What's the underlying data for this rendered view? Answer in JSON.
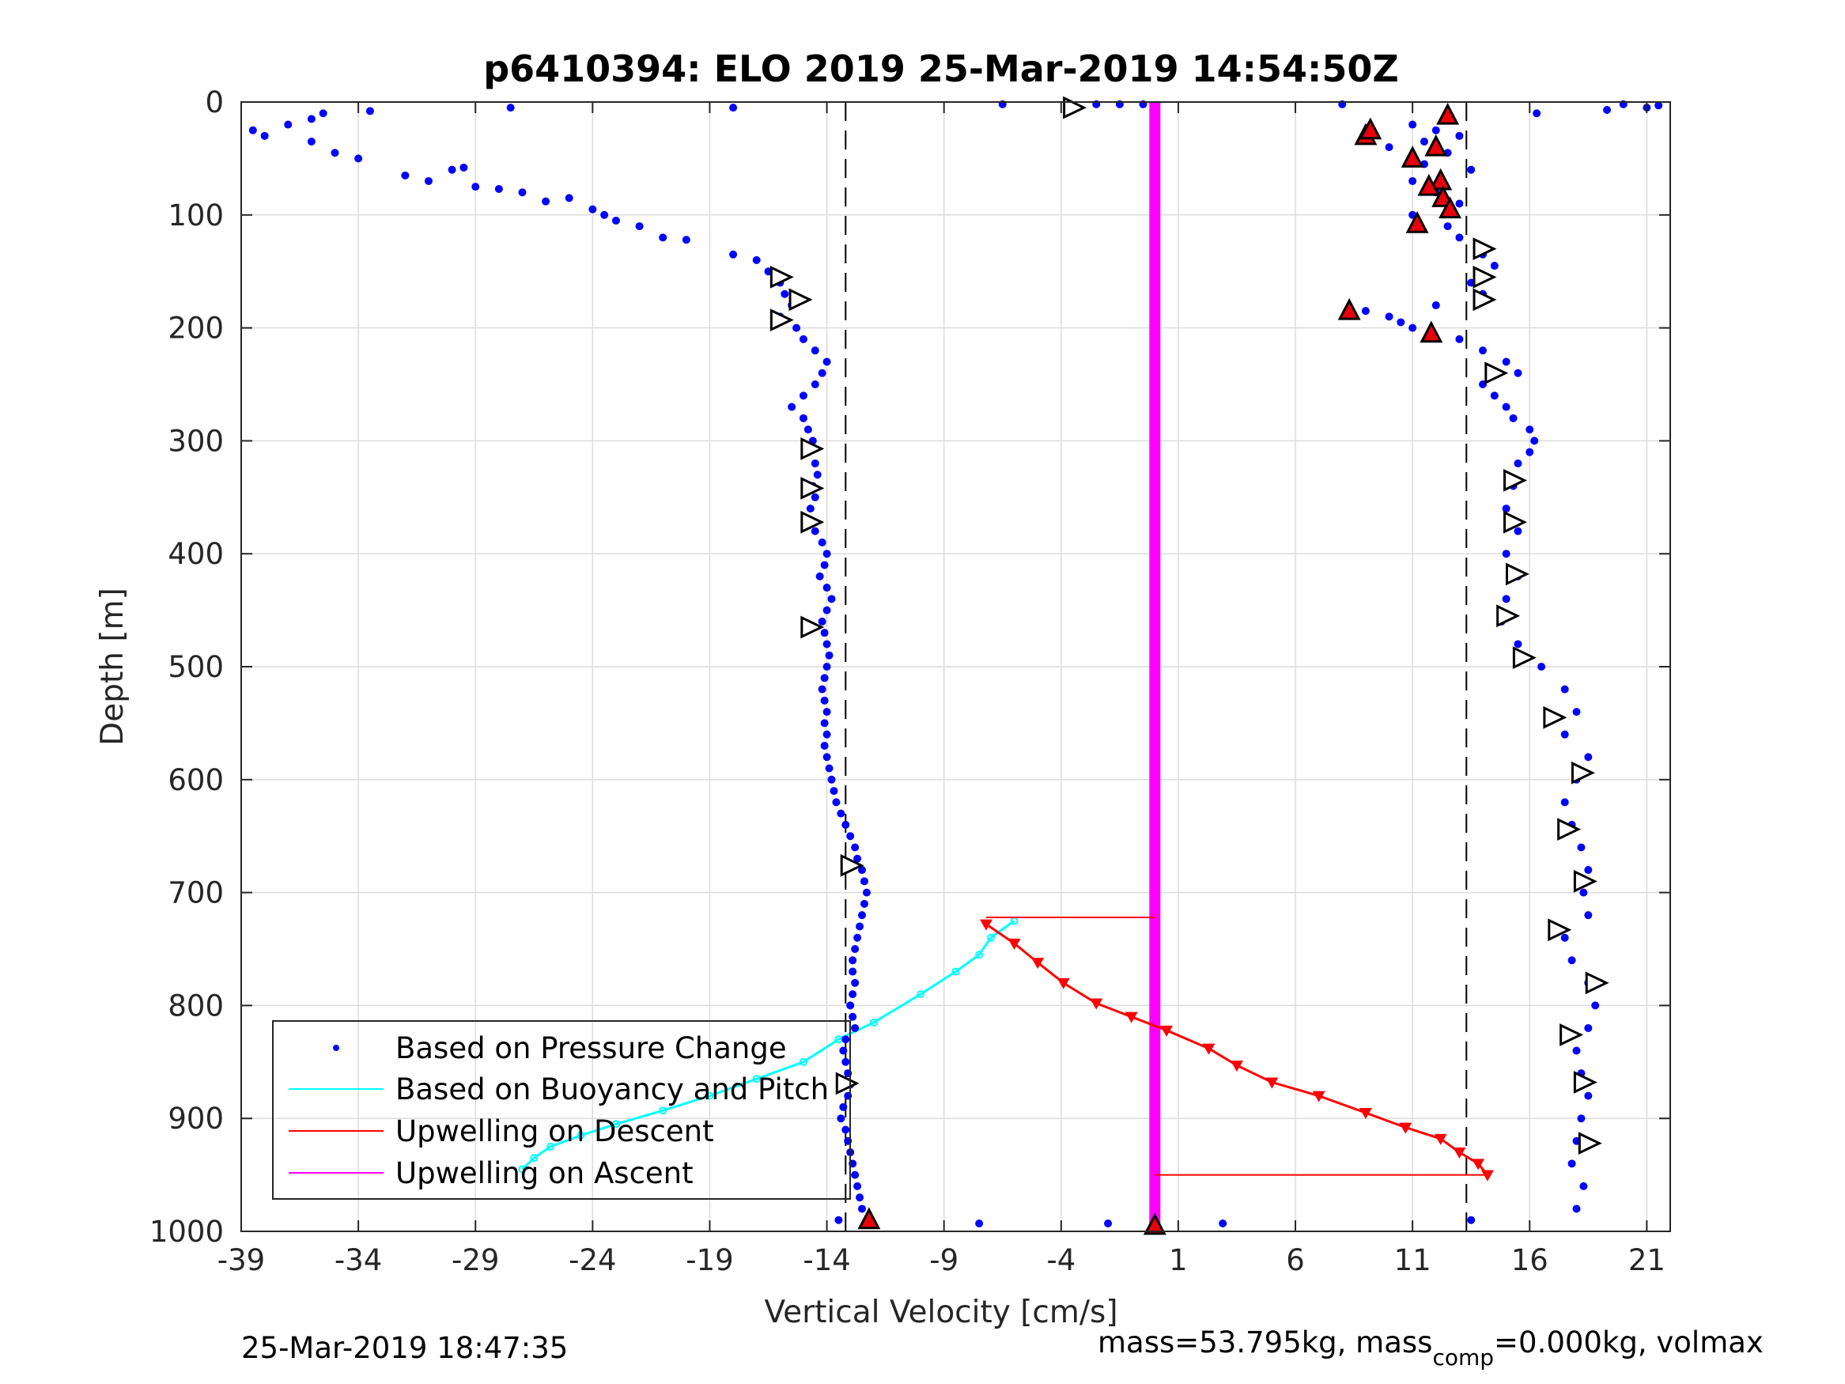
{
  "chart_data": {
    "type": "scatter",
    "title": "p6410394: ELO 2019 25-Mar-2019 14:54:50Z",
    "xlabel": "Vertical Velocity [cm/s]",
    "ylabel": "Depth [m]",
    "xlim": [
      -39,
      22
    ],
    "ylim": [
      0,
      1000
    ],
    "y_reversed": true,
    "grid": true,
    "xticks": [
      "-39",
      "-34",
      "-29",
      "-24",
      "-19",
      "-14",
      "-9",
      "-4",
      "1",
      "6",
      "11",
      "16",
      "21"
    ],
    "yticks": [
      "0",
      "100",
      "200",
      "300",
      "400",
      "500",
      "600",
      "700",
      "800",
      "900",
      "1000"
    ],
    "legend": {
      "position": "bottom-left",
      "entries": [
        {
          "label": "Based on Pressure Change",
          "color": "#0000ff",
          "marker": "dot"
        },
        {
          "label": "Based on Buoyancy and Pitch",
          "color": "#00ffff",
          "marker": "line"
        },
        {
          "label": "Upwelling on Descent",
          "color": "#ff0000",
          "marker": "line"
        },
        {
          "label": "Upwelling on Ascent",
          "color": "#ff00ff",
          "marker": "line"
        }
      ]
    },
    "reference_lines_x": [
      -13.2,
      13.3
    ],
    "series": [
      {
        "name": "Based on Pressure Change",
        "color": "#0000ff",
        "descent_points": [
          [
            -38.5,
            25
          ],
          [
            -38,
            30
          ],
          [
            -37,
            20
          ],
          [
            -36,
            15
          ],
          [
            -35.5,
            10
          ],
          [
            -36,
            35
          ],
          [
            -35,
            45
          ],
          [
            -33.5,
            8
          ],
          [
            -34,
            50
          ],
          [
            -32,
            65
          ],
          [
            -31,
            70
          ],
          [
            -30,
            60
          ],
          [
            -29.5,
            58
          ],
          [
            -29,
            75
          ],
          [
            -28,
            77
          ],
          [
            -27,
            80
          ],
          [
            -26,
            88
          ],
          [
            -25,
            85
          ],
          [
            -24,
            95
          ],
          [
            -23.5,
            100
          ],
          [
            -23,
            105
          ],
          [
            -22,
            110
          ],
          [
            -21,
            120
          ],
          [
            -20,
            122
          ],
          [
            -27.5,
            5
          ],
          [
            -18,
            5
          ],
          [
            -18,
            135
          ],
          [
            -17,
            140
          ],
          [
            -16.5,
            150
          ],
          [
            -16,
            160
          ],
          [
            -15.8,
            170
          ],
          [
            -15.5,
            180
          ],
          [
            -16,
            190
          ],
          [
            -15.3,
            200
          ],
          [
            -15,
            210
          ],
          [
            -14.5,
            220
          ],
          [
            -14,
            230
          ],
          [
            -14.2,
            240
          ],
          [
            -14.5,
            250
          ],
          [
            -15,
            260
          ],
          [
            -15.5,
            270
          ],
          [
            -15,
            280
          ],
          [
            -14.8,
            290
          ],
          [
            -14.6,
            300
          ],
          [
            -14.8,
            310
          ],
          [
            -14.5,
            320
          ],
          [
            -14.4,
            330
          ],
          [
            -14.6,
            340
          ],
          [
            -14.5,
            350
          ],
          [
            -14.7,
            360
          ],
          [
            -14.8,
            370
          ],
          [
            -14.5,
            380
          ],
          [
            -14.2,
            390
          ],
          [
            -14,
            400
          ],
          [
            -14.1,
            410
          ],
          [
            -14.3,
            420
          ],
          [
            -14,
            430
          ],
          [
            -13.8,
            440
          ],
          [
            -14,
            450
          ],
          [
            -14.2,
            460
          ],
          [
            -14.1,
            470
          ],
          [
            -14,
            480
          ],
          [
            -13.9,
            490
          ],
          [
            -14,
            500
          ],
          [
            -14.1,
            510
          ],
          [
            -14.2,
            520
          ],
          [
            -14.1,
            530
          ],
          [
            -14,
            540
          ],
          [
            -14.1,
            550
          ],
          [
            -14,
            560
          ],
          [
            -14.1,
            570
          ],
          [
            -14,
            580
          ],
          [
            -13.9,
            590
          ],
          [
            -13.8,
            600
          ],
          [
            -13.7,
            610
          ],
          [
            -13.6,
            620
          ],
          [
            -13.4,
            630
          ],
          [
            -13.2,
            640
          ],
          [
            -13,
            650
          ],
          [
            -12.8,
            660
          ],
          [
            -12.7,
            670
          ],
          [
            -12.5,
            680
          ],
          [
            -12.4,
            690
          ],
          [
            -12.3,
            700
          ],
          [
            -12.4,
            710
          ],
          [
            -12.5,
            720
          ],
          [
            -12.6,
            730
          ],
          [
            -12.7,
            740
          ],
          [
            -12.8,
            750
          ],
          [
            -12.9,
            760
          ],
          [
            -12.9,
            770
          ],
          [
            -12.8,
            780
          ],
          [
            -12.9,
            790
          ],
          [
            -13,
            800
          ],
          [
            -12.9,
            810
          ],
          [
            -12.8,
            820
          ],
          [
            -13.2,
            830
          ],
          [
            -13.3,
            840
          ],
          [
            -13.2,
            850
          ],
          [
            -13.1,
            860
          ],
          [
            -13,
            870
          ],
          [
            -13.1,
            880
          ],
          [
            -13.3,
            890
          ],
          [
            -13.4,
            900
          ],
          [
            -13.2,
            910
          ],
          [
            -13.1,
            920
          ],
          [
            -13,
            930
          ],
          [
            -12.9,
            940
          ],
          [
            -12.8,
            950
          ],
          [
            -12.7,
            960
          ],
          [
            -12.6,
            970
          ],
          [
            -12.5,
            980
          ],
          [
            -13.5,
            990
          ],
          [
            -7.5,
            993
          ],
          [
            -2,
            993
          ],
          [
            2.9,
            993
          ]
        ],
        "ascent_points": [
          [
            -6.5,
            2
          ],
          [
            -2.5,
            2
          ],
          [
            -1.5,
            2
          ],
          [
            -0.5,
            2
          ],
          [
            8,
            2
          ],
          [
            16.3,
            10
          ],
          [
            19.3,
            7
          ],
          [
            20,
            2
          ],
          [
            21,
            5
          ],
          [
            21.5,
            3
          ],
          [
            11,
            20
          ],
          [
            12,
            25
          ],
          [
            13,
            30
          ],
          [
            11.5,
            35
          ],
          [
            10,
            40
          ],
          [
            12.5,
            45
          ],
          [
            11.5,
            55
          ],
          [
            13.5,
            60
          ],
          [
            11,
            70
          ],
          [
            12,
            80
          ],
          [
            13,
            90
          ],
          [
            11,
            100
          ],
          [
            12.5,
            110
          ],
          [
            13,
            120
          ],
          [
            14,
            135
          ],
          [
            14.5,
            145
          ],
          [
            13.5,
            160
          ],
          [
            14,
            170
          ],
          [
            12,
            180
          ],
          [
            9,
            185
          ],
          [
            10,
            190
          ],
          [
            10.5,
            195
          ],
          [
            11,
            200
          ],
          [
            13,
            210
          ],
          [
            14,
            220
          ],
          [
            15,
            230
          ],
          [
            15.5,
            240
          ],
          [
            14,
            250
          ],
          [
            14.5,
            260
          ],
          [
            15,
            270
          ],
          [
            15.3,
            280
          ],
          [
            16,
            290
          ],
          [
            16.2,
            300
          ],
          [
            16,
            310
          ],
          [
            15.5,
            320
          ],
          [
            15.3,
            340
          ],
          [
            15,
            360
          ],
          [
            15.5,
            380
          ],
          [
            15,
            400
          ],
          [
            15.5,
            420
          ],
          [
            15,
            440
          ],
          [
            14.8,
            460
          ],
          [
            15.5,
            480
          ],
          [
            16.5,
            500
          ],
          [
            17.5,
            520
          ],
          [
            18,
            540
          ],
          [
            17.5,
            560
          ],
          [
            18.5,
            580
          ],
          [
            18,
            600
          ],
          [
            17.5,
            620
          ],
          [
            17.8,
            640
          ],
          [
            18.2,
            660
          ],
          [
            18.5,
            680
          ],
          [
            18.3,
            700
          ],
          [
            18.5,
            720
          ],
          [
            17.5,
            740
          ],
          [
            17.8,
            760
          ],
          [
            18.5,
            780
          ],
          [
            18.8,
            800
          ],
          [
            18.5,
            820
          ],
          [
            18,
            840
          ],
          [
            18.2,
            860
          ],
          [
            18.5,
            880
          ],
          [
            18.2,
            900
          ],
          [
            18,
            920
          ],
          [
            17.8,
            940
          ],
          [
            18.3,
            960
          ],
          [
            18,
            980
          ],
          [
            13.5,
            990
          ]
        ]
      },
      {
        "name": "Based on Buoyancy and Pitch",
        "color": "#00ffff",
        "points": [
          [
            -6,
            725
          ],
          [
            -7,
            740
          ],
          [
            -7.5,
            755
          ],
          [
            -8.5,
            770
          ],
          [
            -10,
            790
          ],
          [
            -12,
            815
          ],
          [
            -13.5,
            830
          ],
          [
            -15,
            850
          ],
          [
            -17,
            865
          ],
          [
            -19,
            880
          ],
          [
            -21,
            893
          ],
          [
            -23,
            905
          ],
          [
            -24.5,
            915
          ],
          [
            -25.8,
            925
          ],
          [
            -26.5,
            935
          ],
          [
            -27,
            945
          ]
        ]
      },
      {
        "name": "Upwelling on Descent",
        "color": "#ff0000",
        "points": [
          [
            -7.2,
            728
          ],
          [
            -6,
            745
          ],
          [
            -5,
            762
          ],
          [
            -3.9,
            780
          ],
          [
            -2.5,
            798
          ],
          [
            -1,
            810
          ],
          [
            0.5,
            822
          ],
          [
            2.3,
            838
          ],
          [
            3.5,
            853
          ],
          [
            5,
            868
          ],
          [
            7,
            880
          ],
          [
            9,
            895
          ],
          [
            10.7,
            908
          ],
          [
            12.2,
            918
          ],
          [
            13,
            930
          ],
          [
            13.8,
            940
          ],
          [
            14.2,
            950
          ]
        ],
        "flat_segments": [
          [
            [
              -7.2,
              722
            ],
            [
              0,
              722
            ]
          ],
          [
            [
              0,
              950
            ],
            [
              14.2,
              950
            ]
          ]
        ]
      },
      {
        "name": "Upwelling on Ascent",
        "color": "#ff00ff",
        "x": 0,
        "depth_range": [
          0,
          995
        ]
      }
    ],
    "markers": {
      "red_triangles": [
        [
          9,
          30
        ],
        [
          9.2,
          25
        ],
        [
          12.5,
          12
        ],
        [
          11,
          50
        ],
        [
          12,
          40
        ],
        [
          12.2,
          70
        ],
        [
          11.7,
          75
        ],
        [
          12.3,
          85
        ],
        [
          12.6,
          95
        ],
        [
          11.2,
          108
        ],
        [
          8.3,
          185
        ],
        [
          11.8,
          205
        ],
        [
          -12.2,
          990
        ],
        [
          0,
          995
        ]
      ],
      "white_triangles": [
        [
          -3.5,
          5
        ],
        [
          -16,
          155
        ],
        [
          -15.2,
          175
        ],
        [
          -16,
          193
        ],
        [
          -14.7,
          307
        ],
        [
          -14.7,
          342
        ],
        [
          -14.7,
          372
        ],
        [
          -14.7,
          465
        ],
        [
          -13,
          676
        ],
        [
          -13.2,
          869
        ],
        [
          14,
          130
        ],
        [
          14,
          155
        ],
        [
          14,
          175
        ],
        [
          14.5,
          240
        ],
        [
          15.3,
          335
        ],
        [
          15.3,
          372
        ],
        [
          15.4,
          418
        ],
        [
          15,
          455
        ],
        [
          15.7,
          492
        ],
        [
          17,
          545
        ],
        [
          18.2,
          594
        ],
        [
          17.6,
          644
        ],
        [
          18.3,
          690
        ],
        [
          17.2,
          733
        ],
        [
          18.8,
          780
        ],
        [
          17.7,
          826
        ],
        [
          18.3,
          868
        ],
        [
          18.5,
          922
        ]
      ]
    }
  },
  "footer": {
    "timestamp": "25-Mar-2019 18:47:35",
    "mass_text": "mass=53.795kg, mass",
    "mass_sub": "comp",
    "mass_text2": "=0.000kg, volmax"
  }
}
